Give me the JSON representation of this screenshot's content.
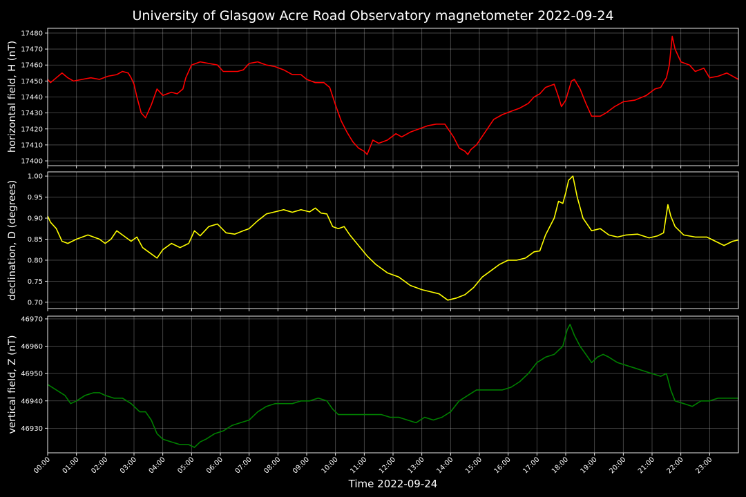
{
  "chart_data": {
    "type": "line",
    "title": "University of Glasgow Acre Road Observatory magnetometer 2022-09-24",
    "xlabel": "Time 2022-09-24",
    "xlim_hours": [
      0,
      24
    ],
    "x_tick_labels": [
      "00:00",
      "01:00",
      "02:00",
      "03:00",
      "04:00",
      "05:00",
      "06:00",
      "07:00",
      "08:00",
      "09:00",
      "10:00",
      "11:00",
      "12:00",
      "13:00",
      "14:00",
      "15:00",
      "16:00",
      "17:00",
      "18:00",
      "19:00",
      "20:00",
      "21:00",
      "22:00",
      "23:00"
    ],
    "grid": true,
    "panels": [
      {
        "name": "horizontal",
        "ylabel": "horizontal field, H (nT)",
        "color": "#ff0000",
        "ylim": [
          17397,
          17483
        ],
        "y_ticks": [
          17400,
          17410,
          17420,
          17430,
          17440,
          17450,
          17460,
          17470,
          17480
        ],
        "y_tick_labels": [
          "17400",
          "17410",
          "17420",
          "17430",
          "17440",
          "17450",
          "17460",
          "17470",
          "17480"
        ],
        "x": [
          0,
          0.1,
          0.3,
          0.5,
          0.7,
          0.9,
          1.2,
          1.5,
          1.8,
          2.1,
          2.4,
          2.6,
          2.8,
          2.9,
          3.0,
          3.1,
          3.25,
          3.4,
          3.6,
          3.8,
          4.0,
          4.3,
          4.5,
          4.7,
          4.8,
          5.0,
          5.3,
          5.6,
          5.9,
          6.1,
          6.4,
          6.6,
          6.8,
          7.0,
          7.3,
          7.6,
          7.9,
          8.2,
          8.5,
          8.8,
          9.0,
          9.3,
          9.6,
          9.8,
          10.0,
          10.2,
          10.4,
          10.6,
          10.8,
          11.0,
          11.1,
          11.3,
          11.5,
          11.8,
          12.1,
          12.3,
          12.6,
          12.9,
          13.2,
          13.5,
          13.8,
          14.1,
          14.3,
          14.5,
          14.6,
          14.7,
          14.9,
          15.2,
          15.5,
          15.8,
          16.1,
          16.4,
          16.7,
          16.9,
          17.1,
          17.3,
          17.6,
          17.75,
          17.85,
          18.0,
          18.2,
          18.3,
          18.5,
          18.7,
          18.9,
          19.2,
          19.4,
          19.7,
          20.0,
          20.4,
          20.8,
          21.1,
          21.3,
          21.5,
          21.6,
          21.7,
          21.8,
          22.0,
          22.3,
          22.5,
          22.8,
          23.0,
          23.3,
          23.6,
          23.8,
          24.0
        ],
        "y": [
          17451,
          17449,
          17452,
          17455,
          17452,
          17450,
          17451,
          17452,
          17451,
          17453,
          17454,
          17456,
          17455,
          17452,
          17448,
          17440,
          17430,
          17427,
          17435,
          17445,
          17441,
          17443,
          17442,
          17445,
          17452,
          17460,
          17462,
          17461,
          17460,
          17456,
          17456,
          17456,
          17457,
          17461,
          17462,
          17460,
          17459,
          17457,
          17454,
          17454,
          17451,
          17449,
          17449,
          17446,
          17435,
          17425,
          17418,
          17412,
          17408,
          17406,
          17404,
          17413,
          17411,
          17413,
          17417,
          17415,
          17418,
          17420,
          17422,
          17423,
          17423,
          17415,
          17408,
          17406,
          17404,
          17407,
          17410,
          17418,
          17426,
          17429,
          17431,
          17433,
          17436,
          17440,
          17442,
          17446,
          17448,
          17440,
          17434,
          17438,
          17450,
          17451,
          17445,
          17436,
          17428,
          17428,
          17430,
          17434,
          17437,
          17438,
          17441,
          17445,
          17446,
          17452,
          17460,
          17478,
          17470,
          17462,
          17460,
          17456,
          17458,
          17452,
          17453,
          17455,
          17453,
          17451
        ]
      },
      {
        "name": "declination",
        "ylabel": "declination, D (degrees)",
        "color": "#ffff00",
        "ylim": [
          0.685,
          1.01
        ],
        "y_ticks": [
          0.7,
          0.75,
          0.8,
          0.85,
          0.9,
          0.95,
          1.0
        ],
        "y_tick_labels": [
          "0.70",
          "0.75",
          "0.80",
          "0.85",
          "0.90",
          "0.95",
          "1.00"
        ],
        "x": [
          0,
          0.1,
          0.3,
          0.5,
          0.7,
          1.0,
          1.4,
          1.8,
          2.0,
          2.2,
          2.4,
          2.6,
          2.9,
          3.1,
          3.3,
          3.6,
          3.8,
          4.0,
          4.3,
          4.6,
          4.9,
          5.1,
          5.3,
          5.6,
          5.9,
          6.2,
          6.5,
          6.8,
          7.0,
          7.3,
          7.6,
          7.9,
          8.2,
          8.5,
          8.8,
          9.1,
          9.3,
          9.5,
          9.7,
          9.9,
          10.1,
          10.3,
          10.5,
          10.8,
          11.1,
          11.4,
          11.8,
          12.2,
          12.6,
          13.0,
          13.3,
          13.6,
          13.9,
          14.2,
          14.5,
          14.8,
          15.1,
          15.4,
          15.7,
          16.0,
          16.3,
          16.6,
          16.9,
          17.1,
          17.3,
          17.6,
          17.75,
          17.9,
          18.0,
          18.1,
          18.25,
          18.4,
          18.6,
          18.9,
          19.2,
          19.5,
          19.8,
          20.1,
          20.5,
          20.9,
          21.2,
          21.4,
          21.55,
          21.65,
          21.8,
          22.1,
          22.5,
          22.9,
          23.2,
          23.5,
          23.8,
          24.0
        ],
        "y": [
          0.905,
          0.89,
          0.875,
          0.845,
          0.84,
          0.85,
          0.86,
          0.85,
          0.84,
          0.85,
          0.87,
          0.86,
          0.845,
          0.855,
          0.83,
          0.815,
          0.805,
          0.825,
          0.84,
          0.83,
          0.84,
          0.87,
          0.858,
          0.88,
          0.886,
          0.865,
          0.862,
          0.87,
          0.875,
          0.894,
          0.91,
          0.915,
          0.92,
          0.914,
          0.92,
          0.915,
          0.924,
          0.912,
          0.91,
          0.88,
          0.875,
          0.88,
          0.86,
          0.835,
          0.81,
          0.79,
          0.77,
          0.76,
          0.74,
          0.73,
          0.725,
          0.72,
          0.705,
          0.71,
          0.718,
          0.735,
          0.76,
          0.775,
          0.79,
          0.8,
          0.8,
          0.805,
          0.82,
          0.822,
          0.86,
          0.9,
          0.94,
          0.935,
          0.96,
          0.99,
          1.0,
          0.95,
          0.9,
          0.87,
          0.875,
          0.86,
          0.855,
          0.86,
          0.862,
          0.853,
          0.858,
          0.865,
          0.932,
          0.905,
          0.88,
          0.86,
          0.855,
          0.855,
          0.845,
          0.835,
          0.845,
          0.848
        ]
      },
      {
        "name": "vertical",
        "ylabel": "vertical field, Z (nT)",
        "color": "#008000",
        "ylim": [
          46921,
          46971
        ],
        "y_ticks": [
          46930,
          46940,
          46950,
          46960,
          46970
        ],
        "y_tick_labels": [
          "46930",
          "46940",
          "46950",
          "46960",
          "46970"
        ],
        "x": [
          0,
          0.3,
          0.6,
          0.8,
          1.0,
          1.3,
          1.6,
          1.8,
          2.0,
          2.3,
          2.6,
          2.9,
          3.2,
          3.4,
          3.6,
          3.8,
          4.0,
          4.3,
          4.6,
          4.9,
          5.1,
          5.3,
          5.5,
          5.8,
          6.1,
          6.4,
          6.7,
          7.0,
          7.3,
          7.6,
          7.9,
          8.2,
          8.5,
          8.8,
          9.1,
          9.4,
          9.7,
          9.9,
          10.1,
          10.4,
          10.7,
          11.0,
          11.3,
          11.6,
          11.9,
          12.2,
          12.5,
          12.8,
          13.1,
          13.4,
          13.7,
          14.0,
          14.3,
          14.6,
          14.9,
          15.2,
          15.5,
          15.8,
          16.1,
          16.4,
          16.7,
          17.0,
          17.3,
          17.6,
          17.8,
          17.9,
          18.05,
          18.15,
          18.3,
          18.5,
          18.7,
          18.9,
          19.1,
          19.3,
          19.5,
          19.8,
          20.1,
          20.4,
          20.7,
          21.0,
          21.3,
          21.5,
          21.65,
          21.8,
          22.1,
          22.4,
          22.7,
          23.0,
          23.3,
          23.6,
          23.9,
          24.0
        ],
        "y": [
          46946,
          46944,
          46942,
          46939,
          46940,
          46942,
          46943,
          46943,
          46942,
          46941,
          46941,
          46939,
          46936,
          46936,
          46933,
          46928,
          46926,
          46925,
          46924,
          46924,
          46923,
          46925,
          46926,
          46928,
          46929,
          46931,
          46932,
          46933,
          46936,
          46938,
          46939,
          46939,
          46939,
          46940,
          46940,
          46941,
          46940,
          46937,
          46935,
          46935,
          46935,
          46935,
          46935,
          46935,
          46934,
          46934,
          46933,
          46932,
          46934,
          46933,
          46934,
          46936,
          46940,
          46942,
          46944,
          46944,
          46944,
          46944,
          46945,
          46947,
          46950,
          46954,
          46956,
          46957,
          46959,
          46960,
          46966,
          46968,
          46964,
          46960,
          46957,
          46954,
          46956,
          46957,
          46956,
          46954,
          46953,
          46952,
          46951,
          46950,
          46949,
          46950,
          46944,
          46940,
          46939,
          46938,
          46940,
          46940,
          46941,
          46941,
          46941,
          46941
        ]
      }
    ]
  }
}
